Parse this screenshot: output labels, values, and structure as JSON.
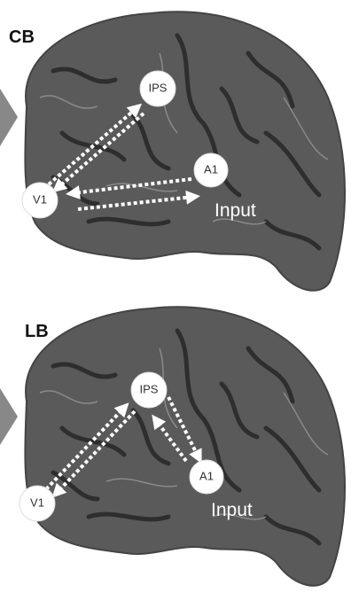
{
  "panels": [
    {
      "label": "CB",
      "nodes": [
        {
          "label": "IPS"
        },
        {
          "label": "A1"
        },
        {
          "label": "V1"
        }
      ],
      "input": "Input"
    },
    {
      "label": "LB",
      "nodes": [
        {
          "label": "IPS"
        },
        {
          "label": "A1"
        },
        {
          "label": "V1"
        }
      ],
      "input": "Input"
    }
  ]
}
